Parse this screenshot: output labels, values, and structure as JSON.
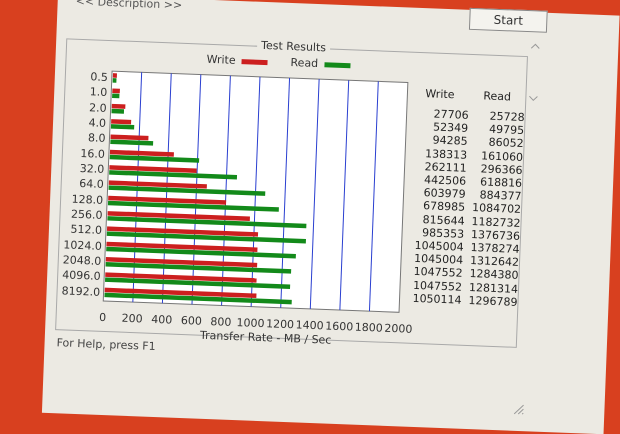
{
  "window": {
    "description_link": "<< Description >>",
    "start_button": "Start",
    "group_title": "Test Results",
    "status_text": "For Help, press F1"
  },
  "legend": {
    "write": "Write",
    "read": "Read"
  },
  "table": {
    "headers": {
      "write": "Write",
      "read": "Read"
    },
    "rows": [
      {
        "write": "27706",
        "read": "25728"
      },
      {
        "write": "52349",
        "read": "49795"
      },
      {
        "write": "94285",
        "read": "86052"
      },
      {
        "write": "138313",
        "read": "161060"
      },
      {
        "write": "262111",
        "read": "296366"
      },
      {
        "write": "442506",
        "read": "618816"
      },
      {
        "write": "603979",
        "read": "884377"
      },
      {
        "write": "678985",
        "read": "1084702"
      },
      {
        "write": "815644",
        "read": "1182732"
      },
      {
        "write": "985353",
        "read": "1376736"
      },
      {
        "write": "1045004",
        "read": "1378274"
      },
      {
        "write": "1045004",
        "read": "1312642"
      },
      {
        "write": "1047552",
        "read": "1284380"
      },
      {
        "write": "1047552",
        "read": "1281314"
      },
      {
        "write": "1050114",
        "read": "1296789"
      }
    ]
  },
  "chart_data": {
    "type": "bar",
    "orientation": "horizontal",
    "categories": [
      "0.5",
      "1.0",
      "2.0",
      "4.0",
      "8.0",
      "16.0",
      "32.0",
      "64.0",
      "128.0",
      "256.0",
      "512.0",
      "1024.0",
      "2048.0",
      "4096.0",
      "8192.0"
    ],
    "series": [
      {
        "name": "Write",
        "color": "#cc1f1f",
        "values": [
          27,
          51,
          92,
          135,
          256,
          432,
          590,
          663,
          797,
          962,
          1021,
          1021,
          1023,
          1023,
          1026
        ]
      },
      {
        "name": "Read",
        "color": "#138a1a",
        "values": [
          25,
          49,
          84,
          157,
          289,
          604,
          864,
          1059,
          1155,
          1345,
          1346,
          1282,
          1254,
          1251,
          1266
        ]
      }
    ],
    "xlabel": "Transfer Rate - MB / Sec",
    "xticks": [
      "0",
      "200",
      "400",
      "600",
      "800",
      "1000",
      "1200",
      "1400",
      "1600",
      "1800",
      "2000"
    ],
    "xlim": [
      0,
      2000
    ],
    "grid": true,
    "legend_position": "top"
  }
}
